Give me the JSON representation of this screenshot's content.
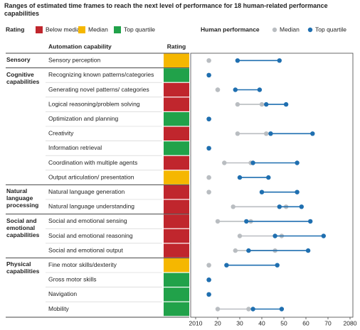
{
  "chart_data": {
    "type": "dumbbell",
    "title": "Ranges of estimated time frames to reach the next level of performance for 18 human-related performance capabilities",
    "rating_legend": {
      "title": "Rating",
      "items": [
        {
          "name": "Below median",
          "color": "#c0262d"
        },
        {
          "name": "Median",
          "color": "#f5b700"
        },
        {
          "name": "Top quartile",
          "color": "#21a24a"
        }
      ]
    },
    "legend_title": "Human performance",
    "series": [
      {
        "name": "Median",
        "color": "#b9bdc1"
      },
      {
        "name": "Top quartile",
        "color": "#1f6fb0"
      }
    ],
    "column_headers": [
      "Automation capability",
      "Rating"
    ],
    "groups": [
      {
        "name": "Sensory",
        "rows": [
          {
            "label": "Sensory perception",
            "rating": "Median",
            "values": [
              [
                2016,
                2016
              ],
              [
                2029,
                2048
              ]
            ]
          }
        ]
      },
      {
        "name": "Cognitive capabilities",
        "rows": [
          {
            "label": "Recognizing known patterns/categories",
            "rating": "Top quartile",
            "values": [
              [
                2016,
                2016
              ],
              [
                2016,
                2016
              ]
            ]
          },
          {
            "label": "Generating novel patterns/ categories",
            "rating": "Below median",
            "values": [
              [
                2020,
                2020
              ],
              [
                2028,
                2039
              ]
            ]
          },
          {
            "label": "Logical reasoning/problem solving",
            "rating": "Below median",
            "values": [
              [
                2029,
                2040
              ],
              [
                2042,
                2051
              ]
            ]
          },
          {
            "label": "Optimization and planning",
            "rating": "Top quartile",
            "values": [
              [
                2016,
                2016
              ],
              [
                2016,
                2016
              ]
            ]
          },
          {
            "label": "Creativity",
            "rating": "Below median",
            "values": [
              [
                2029,
                2042
              ],
              [
                2044,
                2063
              ]
            ]
          },
          {
            "label": "Information retrieval",
            "rating": "Top quartile",
            "values": [
              [
                2016,
                2016
              ],
              [
                2016,
                2016
              ]
            ]
          },
          {
            "label": "Coordination with multiple agents",
            "rating": "Below median",
            "values": [
              [
                2023,
                2035
              ],
              [
                2036,
                2056
              ]
            ]
          },
          {
            "label": "Output articulation/ presentation",
            "rating": "Median",
            "values": [
              [
                2016,
                2016
              ],
              [
                2030,
                2043
              ]
            ]
          }
        ]
      },
      {
        "name": "Natural language processing",
        "rows": [
          {
            "label": "Natural language generation",
            "rating": "Below median",
            "values": [
              [
                2016,
                2016
              ],
              [
                2040,
                2056
              ]
            ]
          },
          {
            "label": "Natural language understanding",
            "rating": "Below median",
            "values": [
              [
                2027,
                2051
              ],
              [
                2048,
                2058
              ]
            ]
          }
        ]
      },
      {
        "name": "Social and emotional capabilities",
        "rows": [
          {
            "label": "Social and emotional sensing",
            "rating": "Below median",
            "values": [
              [
                2020,
                2035
              ],
              [
                2033,
                2062
              ]
            ]
          },
          {
            "label": "Social and emotional reasoning",
            "rating": "Below median",
            "values": [
              [
                2030,
                2049
              ],
              [
                2046,
                2068
              ]
            ]
          },
          {
            "label": "Social and emotional output",
            "rating": "Below median",
            "values": [
              [
                2028,
                2046
              ],
              [
                2034,
                2061
              ]
            ]
          }
        ]
      },
      {
        "name": "Physical capabilities",
        "rows": [
          {
            "label": "Fine motor skills/dexterity",
            "rating": "Median",
            "values": [
              [
                2016,
                2016
              ],
              [
                2024,
                2047
              ]
            ]
          },
          {
            "label": "Gross motor skills",
            "rating": "Top quartile",
            "values": [
              [
                2016,
                2016
              ],
              [
                2016,
                2016
              ]
            ]
          },
          {
            "label": "Navigation",
            "rating": "Top quartile",
            "values": [
              [
                2016,
                2016
              ],
              [
                2016,
                2016
              ]
            ]
          },
          {
            "label": "Mobility",
            "rating": "Top quartile",
            "values": [
              [
                2020,
                2034
              ],
              [
                2036,
                2049
              ]
            ]
          }
        ]
      }
    ],
    "xlim": [
      2010,
      2080
    ],
    "xticks": [
      2010,
      {
        "value": 2020,
        "label": "20"
      },
      {
        "value": 2030,
        "label": "30"
      },
      {
        "value": 2040,
        "label": "40"
      },
      {
        "value": 2050,
        "label": "50"
      },
      {
        "value": 2060,
        "label": "60"
      },
      {
        "value": 2070,
        "label": "70"
      },
      2080
    ]
  }
}
